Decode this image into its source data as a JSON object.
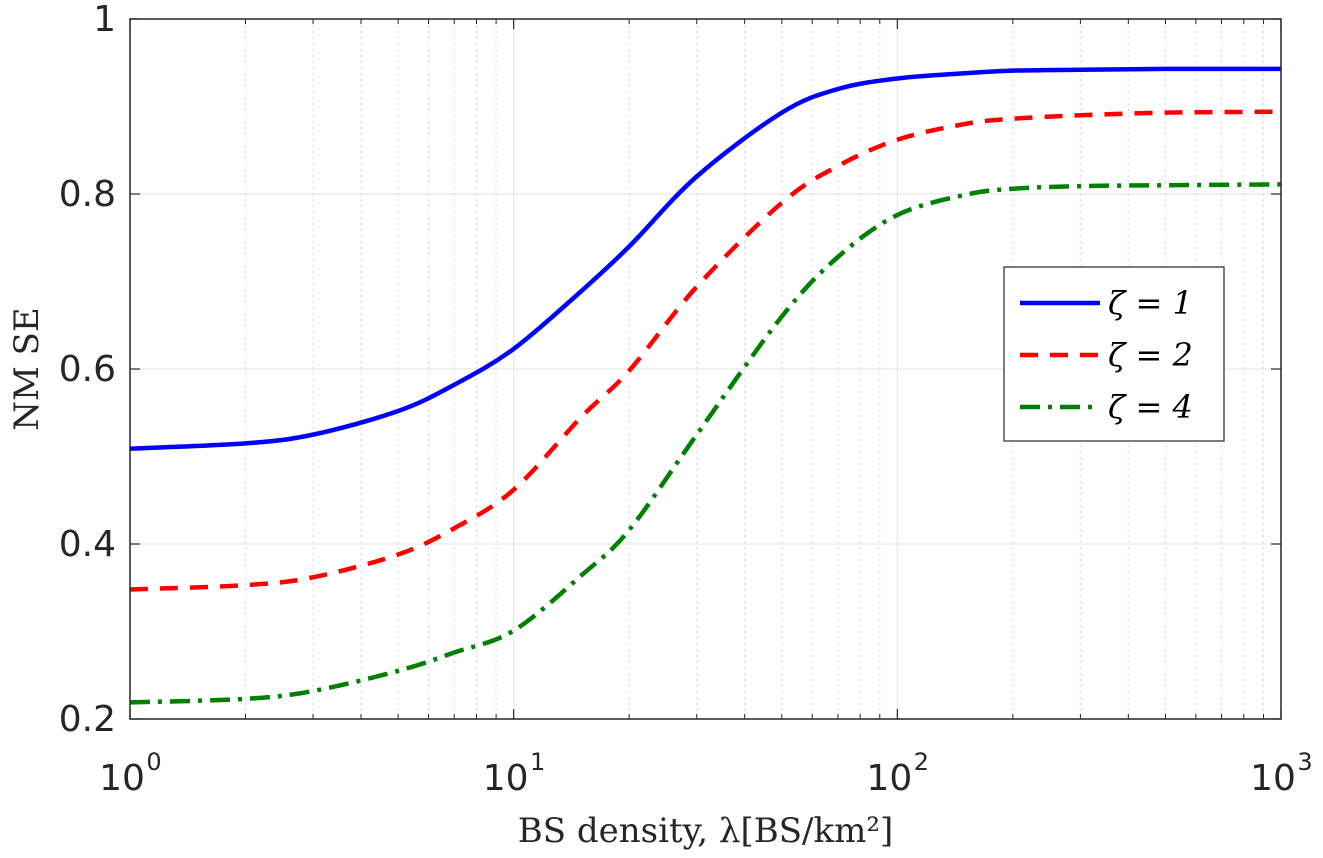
{
  "chart_data": {
    "type": "line",
    "xlabel": "BS density, λ[BS/km²]",
    "ylabel": "NM SE",
    "x_scale": "log",
    "xlim": [
      1,
      1000
    ],
    "ylim": [
      0.2,
      1
    ],
    "x_ticks": [
      {
        "value": 1,
        "base": "10",
        "exp": "0"
      },
      {
        "value": 10,
        "base": "10",
        "exp": "1"
      },
      {
        "value": 100,
        "base": "10",
        "exp": "2"
      },
      {
        "value": 1000,
        "base": "10",
        "exp": "3"
      }
    ],
    "y_ticks": [
      {
        "value": 0.2,
        "label": "0.2"
      },
      {
        "value": 0.4,
        "label": "0.4"
      },
      {
        "value": 0.6,
        "label": "0.6"
      },
      {
        "value": 0.8,
        "label": "0.8"
      },
      {
        "value": 1.0,
        "label": "1"
      }
    ],
    "grid": true,
    "legend_position": "right",
    "series": [
      {
        "name": "ζ = 1",
        "color": "#0000ff",
        "style": "solid",
        "x": [
          1,
          2,
          3,
          5,
          7,
          10,
          15,
          20,
          30,
          50,
          70,
          100,
          150,
          200,
          300,
          500,
          1000
        ],
        "y": [
          0.509,
          0.515,
          0.525,
          0.552,
          0.582,
          0.623,
          0.689,
          0.74,
          0.82,
          0.893,
          0.92,
          0.932,
          0.938,
          0.941,
          0.942,
          0.943,
          0.943
        ]
      },
      {
        "name": "ζ = 2",
        "color": "#ff0000",
        "style": "dashed",
        "x": [
          1,
          2,
          3,
          5,
          7,
          10,
          15,
          20,
          30,
          50,
          70,
          100,
          150,
          200,
          300,
          500,
          1000
        ],
        "y": [
          0.348,
          0.353,
          0.362,
          0.388,
          0.418,
          0.462,
          0.545,
          0.598,
          0.694,
          0.79,
          0.832,
          0.862,
          0.88,
          0.886,
          0.89,
          0.893,
          0.894
        ]
      },
      {
        "name": "ζ = 4",
        "color": "#008000",
        "style": "dashdot",
        "x": [
          1,
          2,
          3,
          5,
          7,
          10,
          15,
          20,
          30,
          50,
          70,
          100,
          150,
          200,
          300,
          500,
          1000
        ],
        "y": [
          0.219,
          0.223,
          0.232,
          0.255,
          0.276,
          0.301,
          0.364,
          0.416,
          0.525,
          0.66,
          0.728,
          0.776,
          0.799,
          0.806,
          0.809,
          0.81,
          0.811
        ]
      }
    ]
  }
}
